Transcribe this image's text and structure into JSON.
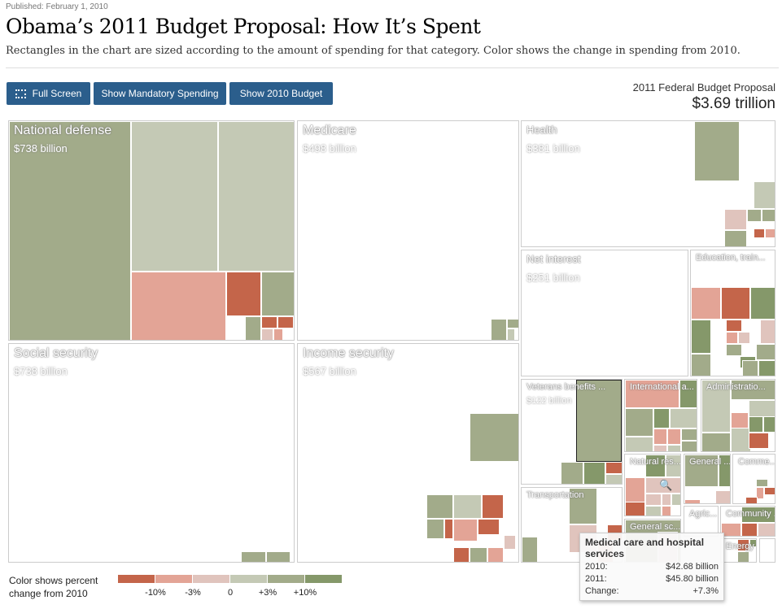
{
  "published": "Published: February 1, 2010",
  "title": "Obama’s 2011 Budget Proposal: How It’s Spent",
  "subtitle": "Rectangles in the chart are sized according to the amount of spending for that category. Color shows the change in spending from 2010.",
  "buttons": {
    "full_screen": "Full Screen",
    "mandatory": "Show Mandatory Spending",
    "budget2010": "Show 2010 Budget"
  },
  "total": {
    "label": "2011 Federal Budget Proposal",
    "value": "$3.69 trillion"
  },
  "categories": [
    {
      "name": "National defense",
      "amount": "$738 billion"
    },
    {
      "name": "Medicare",
      "amount": "$498 billion"
    },
    {
      "name": "Health",
      "amount": "$381 billion"
    },
    {
      "name": "Net interest",
      "amount": "$251 billion"
    },
    {
      "name": "Education, train...",
      "amount": ""
    },
    {
      "name": "Social security",
      "amount": "$738 billion"
    },
    {
      "name": "Income security",
      "amount": "$567 billion"
    },
    {
      "name": "Veterans benefits ...",
      "amount": "$122 billion"
    },
    {
      "name": "International a...",
      "amount": ""
    },
    {
      "name": "Administratio...",
      "amount": ""
    },
    {
      "name": "Natural res...",
      "amount": ""
    },
    {
      "name": "General ...",
      "amount": ""
    },
    {
      "name": "Comme...",
      "amount": ""
    },
    {
      "name": "Transportation",
      "amount": ""
    },
    {
      "name": "General sc...",
      "amount": ""
    },
    {
      "name": "Agric...",
      "amount": ""
    },
    {
      "name": "Community ...",
      "amount": ""
    },
    {
      "name": "Energy",
      "amount": ""
    }
  ],
  "colors": [
    "#c4654a",
    "#e3a496",
    "#e0c4bd",
    "#c4c9b5",
    "#a2ab8a",
    "#85986a"
  ],
  "legend": {
    "title_line1": "Color shows percent",
    "title_line2": "change from 2010",
    "ticks": [
      "-10%",
      "-3%",
      "0",
      "+3%",
      "+10%"
    ]
  },
  "tooltip": {
    "title": "Medical care and hospital services",
    "rows": [
      {
        "k": "2010:",
        "v": "$42.68 billion"
      },
      {
        "k": "2011:",
        "v": "$45.80 billion"
      },
      {
        "k": "Change:",
        "v": "+7.3%"
      }
    ]
  }
}
